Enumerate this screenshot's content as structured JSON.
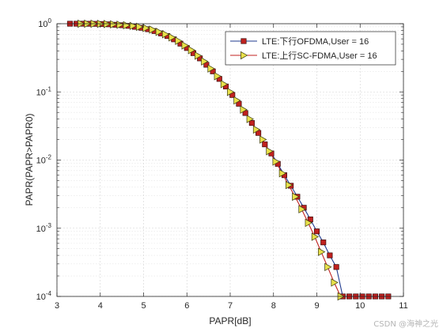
{
  "chart_data": {
    "type": "line",
    "title": "",
    "xlabel": "PAPR[dB]",
    "ylabel": "PAPR(PAPR>PAPR0)",
    "xlim": [
      3,
      11
    ],
    "ylim": [
      0.0001,
      1
    ],
    "yscale": "log",
    "grid": true,
    "legend_position": "top-right",
    "x_ticks": [
      "3",
      "4",
      "5",
      "6",
      "7",
      "8",
      "9",
      "10",
      "11"
    ],
    "y_ticks": [
      {
        "base": "10",
        "exp": "0",
        "value": 1
      },
      {
        "base": "10",
        "exp": "-1",
        "value": 0.1
      },
      {
        "base": "10",
        "exp": "-2",
        "value": 0.01
      },
      {
        "base": "10",
        "exp": "-3",
        "value": 0.001
      },
      {
        "base": "10",
        "exp": "-4",
        "value": 0.0001
      }
    ],
    "series": [
      {
        "name": "LTE:下行OFDMA,User = 16",
        "line_color": "#1f3a8f",
        "marker": "square",
        "marker_fill": "#c0211f",
        "x": [
          3.3,
          3.45,
          3.6,
          3.75,
          3.9,
          4.05,
          4.2,
          4.35,
          4.5,
          4.65,
          4.8,
          4.95,
          5.1,
          5.25,
          5.4,
          5.55,
          5.7,
          5.85,
          6.0,
          6.15,
          6.3,
          6.45,
          6.6,
          6.75,
          6.9,
          7.05,
          7.2,
          7.35,
          7.5,
          7.65,
          7.8,
          7.95,
          8.1,
          8.25,
          8.4,
          8.55,
          8.7,
          8.85,
          9.0,
          9.15,
          9.3,
          9.45,
          9.6,
          9.75,
          9.9,
          10.05,
          10.2,
          10.35,
          10.5,
          10.65
        ],
        "y": [
          1,
          1,
          1,
          0.998,
          0.995,
          0.99,
          0.98,
          0.965,
          0.95,
          0.93,
          0.9,
          0.87,
          0.83,
          0.78,
          0.72,
          0.66,
          0.59,
          0.51,
          0.44,
          0.37,
          0.31,
          0.25,
          0.2,
          0.155,
          0.12,
          0.09,
          0.067,
          0.049,
          0.035,
          0.025,
          0.017,
          0.0125,
          0.0088,
          0.006,
          0.0042,
          0.0029,
          0.002,
          0.00135,
          0.0009,
          0.00062,
          0.0004,
          0.00027,
          0.0001,
          0.0001,
          0.0001,
          0.0001,
          0.0001,
          0.0001,
          0.0001,
          0.0001
        ]
      },
      {
        "name": "LTE:上行SC-FDMA,User = 16",
        "line_color": "#c0211f",
        "marker": "triangle-right",
        "marker_fill": "#e8e04a",
        "x": [
          3.55,
          3.7,
          3.85,
          4.0,
          4.15,
          4.3,
          4.45,
          4.6,
          4.75,
          4.9,
          5.05,
          5.2,
          5.35,
          5.5,
          5.65,
          5.8,
          5.95,
          6.1,
          6.25,
          6.4,
          6.55,
          6.7,
          6.85,
          7.0,
          7.15,
          7.3,
          7.45,
          7.6,
          7.75,
          7.9,
          8.05,
          8.2,
          8.35,
          8.5,
          8.65,
          8.8,
          8.95,
          9.1,
          9.25,
          9.4,
          9.55
        ],
        "y": [
          1,
          1,
          0.998,
          0.995,
          0.99,
          0.98,
          0.965,
          0.95,
          0.93,
          0.9,
          0.865,
          0.82,
          0.76,
          0.7,
          0.63,
          0.56,
          0.48,
          0.41,
          0.34,
          0.28,
          0.22,
          0.17,
          0.13,
          0.1,
          0.075,
          0.055,
          0.04,
          0.028,
          0.02,
          0.0135,
          0.0095,
          0.0064,
          0.0043,
          0.0029,
          0.0019,
          0.0012,
          0.00075,
          0.00045,
          0.00027,
          0.00016,
          0.0001
        ]
      }
    ]
  },
  "watermark": "CSDN @海神之光"
}
